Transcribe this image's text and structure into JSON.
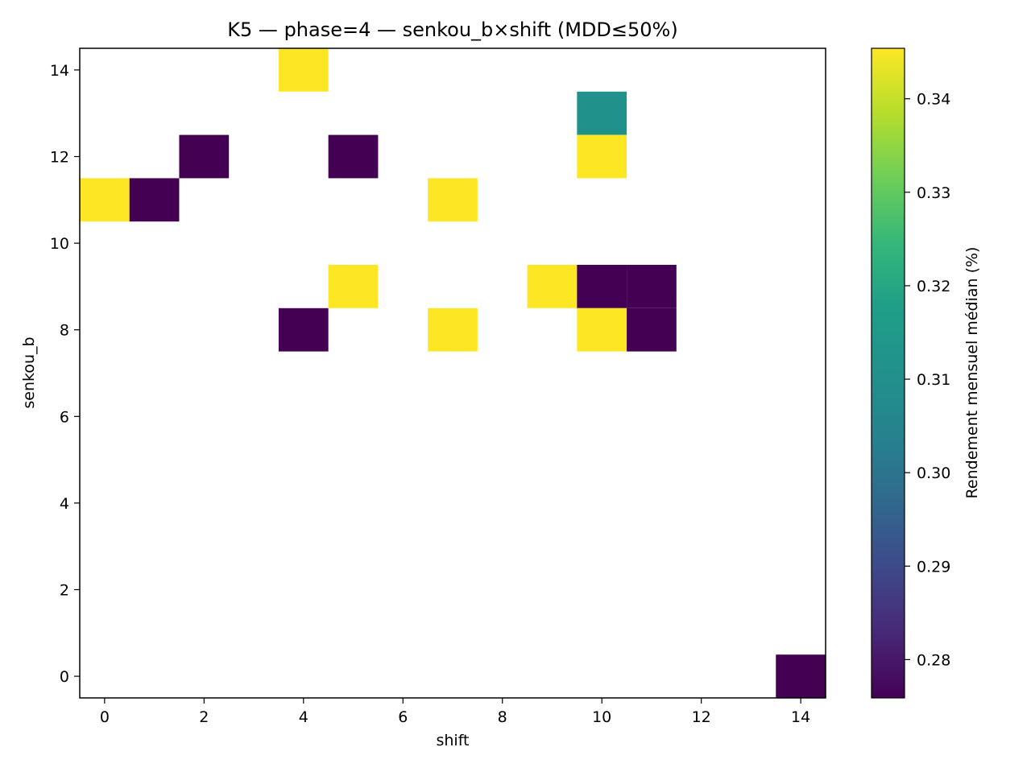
{
  "chart_data": {
    "type": "heatmap",
    "title": "K5 — phase=4 — senkou_b×shift (MDD≤50%)",
    "xlabel": "shift",
    "ylabel": "senkou_b",
    "xlim": [
      -0.5,
      14.5
    ],
    "ylim": [
      -0.5,
      14.5
    ],
    "xticks": [
      0,
      2,
      4,
      6,
      8,
      10,
      12,
      14
    ],
    "yticks": [
      0,
      2,
      4,
      6,
      8,
      10,
      12,
      14
    ],
    "colorbar": {
      "label": "Rendement mensuel médian (%)",
      "colormap": "viridis",
      "range": [
        0.2759,
        0.3454
      ],
      "ticks": [
        0.28,
        0.29,
        0.3,
        0.31,
        0.32,
        0.33,
        0.34
      ],
      "tick_labels": [
        "0.28",
        "0.29",
        "0.30",
        "0.31",
        "0.32",
        "0.33",
        "0.34"
      ]
    },
    "cells": [
      {
        "shift": 4,
        "senkou_b": 14,
        "value": 0.3454
      },
      {
        "shift": 10,
        "senkou_b": 13,
        "value": 0.3106
      },
      {
        "shift": 2,
        "senkou_b": 12,
        "value": 0.2759
      },
      {
        "shift": 5,
        "senkou_b": 12,
        "value": 0.2759
      },
      {
        "shift": 10,
        "senkou_b": 12,
        "value": 0.3454
      },
      {
        "shift": 0,
        "senkou_b": 11,
        "value": 0.3454
      },
      {
        "shift": 1,
        "senkou_b": 11,
        "value": 0.2759
      },
      {
        "shift": 7,
        "senkou_b": 11,
        "value": 0.3454
      },
      {
        "shift": 5,
        "senkou_b": 9,
        "value": 0.3454
      },
      {
        "shift": 9,
        "senkou_b": 9,
        "value": 0.3454
      },
      {
        "shift": 10,
        "senkou_b": 9,
        "value": 0.2759
      },
      {
        "shift": 11,
        "senkou_b": 9,
        "value": 0.2759
      },
      {
        "shift": 4,
        "senkou_b": 8,
        "value": 0.2759
      },
      {
        "shift": 7,
        "senkou_b": 8,
        "value": 0.3454
      },
      {
        "shift": 10,
        "senkou_b": 8,
        "value": 0.3454
      },
      {
        "shift": 11,
        "senkou_b": 8,
        "value": 0.2759
      },
      {
        "shift": 14,
        "senkou_b": 0,
        "value": 0.2759
      }
    ]
  }
}
